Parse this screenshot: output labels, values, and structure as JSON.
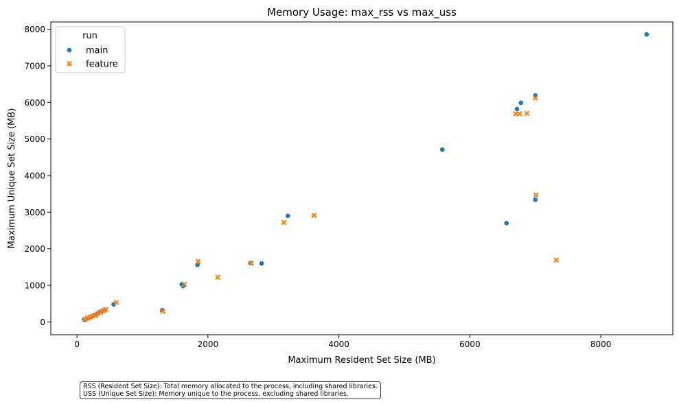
{
  "chart_data": {
    "type": "scatter",
    "title": "Memory Usage: max_rss vs max_uss",
    "xlabel": "Maximum Resident Set Size (MB)",
    "ylabel": "Maximum Unique Set Size (MB)",
    "xlim": [
      -400,
      9100
    ],
    "ylim": [
      -350,
      8200
    ],
    "xticks": [
      0,
      2000,
      4000,
      6000,
      8000
    ],
    "yticks": [
      0,
      1000,
      2000,
      3000,
      4000,
      5000,
      6000,
      7000,
      8000
    ],
    "grid": false,
    "legend": {
      "title": "run",
      "placement": "top-left"
    },
    "series": [
      {
        "name": "main",
        "marker": "circle",
        "color": "#1f77b4",
        "points": [
          [
            8700,
            7860
          ],
          [
            7000,
            6190
          ],
          [
            6780,
            5990
          ],
          [
            6720,
            5820
          ],
          [
            5580,
            4710
          ],
          [
            7000,
            3340
          ],
          [
            6560,
            2700
          ],
          [
            3220,
            2900
          ],
          [
            2820,
            1600
          ],
          [
            2650,
            1610
          ],
          [
            1840,
            1560
          ],
          [
            1620,
            980
          ],
          [
            1600,
            1030
          ],
          [
            560,
            480
          ],
          [
            420,
            330
          ],
          [
            380,
            300
          ],
          [
            340,
            270
          ],
          [
            300,
            220
          ],
          [
            260,
            190
          ],
          [
            220,
            150
          ],
          [
            180,
            120
          ],
          [
            140,
            90
          ],
          [
            110,
            60
          ],
          [
            1300,
            320
          ]
        ]
      },
      {
        "name": "feature",
        "marker": "x",
        "color": "#ff7f0e",
        "points": [
          [
            7000,
            6120
          ],
          [
            6700,
            5690
          ],
          [
            6760,
            5690
          ],
          [
            6870,
            5700
          ],
          [
            7010,
            3470
          ],
          [
            7320,
            1690
          ],
          [
            3620,
            2910
          ],
          [
            3160,
            2720
          ],
          [
            2660,
            1610
          ],
          [
            2150,
            1220
          ],
          [
            1850,
            1650
          ],
          [
            1640,
            1030
          ],
          [
            1310,
            290
          ],
          [
            600,
            530
          ],
          [
            440,
            340
          ],
          [
            400,
            310
          ],
          [
            360,
            260
          ],
          [
            320,
            230
          ],
          [
            280,
            180
          ],
          [
            240,
            160
          ],
          [
            200,
            130
          ],
          [
            160,
            100
          ],
          [
            120,
            70
          ]
        ]
      }
    ],
    "note": [
      "RSS (Resident Set Size): Total memory allocated to the process, including shared libraries.",
      "USS (Unique Set Size): Memory unique to the process, excluding shared libraries."
    ]
  }
}
